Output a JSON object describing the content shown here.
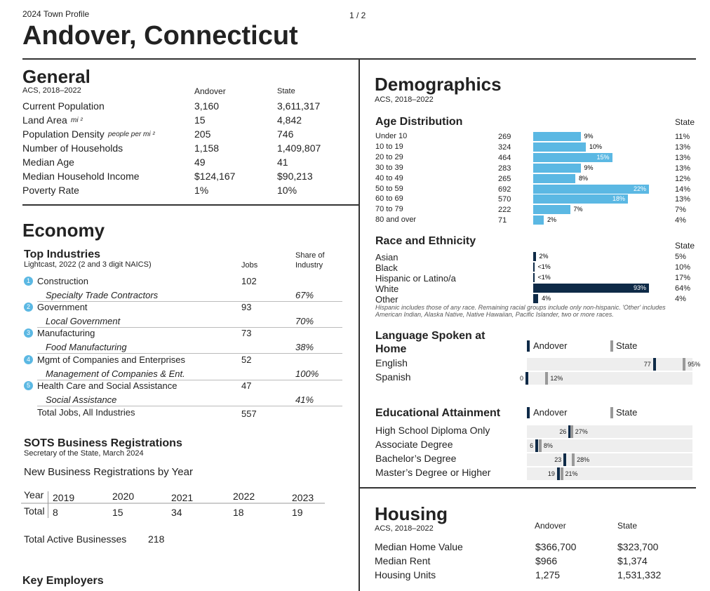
{
  "header": {
    "profile": "2024 Town Profile",
    "page": "1 / 2",
    "title": "Andover, Connecticut"
  },
  "general": {
    "title": "General",
    "source": "ACS, 2018–2022",
    "col_town": "Andover",
    "col_state": "State",
    "rows": [
      {
        "label": "Current Population",
        "town": "3,160",
        "state": "3,611,317"
      },
      {
        "label": "Land Area",
        "unit": "mi ²",
        "town": "15",
        "state": "4,842"
      },
      {
        "label": "Population Density",
        "unit": "people per mi ²",
        "town": "205",
        "state": "746"
      },
      {
        "label": "Number of Households",
        "town": "1,158",
        "state": "1,409,807"
      },
      {
        "label": "Median Age",
        "town": "49",
        "state": "41"
      },
      {
        "label": "Median Household Income",
        "town": "$124,167",
        "state": "$90,213"
      },
      {
        "label": "Poverty Rate",
        "town": "1%",
        "state": "10%"
      }
    ]
  },
  "economy": {
    "title": "Economy",
    "industries": {
      "title": "Top Industries",
      "source": "Lightcast, 2022 (2 and 3 digit NAICS)",
      "col_jobs": "Jobs",
      "col_share": "Share of Industry",
      "rows": [
        {
          "rank": "1",
          "name": "Construction",
          "jobs": "102",
          "sub": "Specialty Trade Contractors",
          "share": "67%"
        },
        {
          "rank": "2",
          "name": "Government",
          "jobs": "93",
          "sub": "Local Government",
          "share": "70%"
        },
        {
          "rank": "3",
          "name": "Manufacturing",
          "jobs": "73",
          "sub": "Food Manufacturing",
          "share": "38%"
        },
        {
          "rank": "4",
          "name": "Mgmt of Companies and Enterprises",
          "jobs": "52",
          "sub": "Management of Companies & Ent.",
          "share": "100%"
        },
        {
          "rank": "5",
          "name": "Health Care and Social Assistance",
          "jobs": "47",
          "sub": "Social Assistance",
          "share": "41%"
        }
      ],
      "total_label": "Total Jobs, All Industries",
      "total": "557"
    },
    "registrations": {
      "title": "SOTS Business Registrations",
      "source": "Secretary of the State, March 2024",
      "subtitle": "New Business Registrations by Year",
      "row_year": "Year",
      "row_total": "Total",
      "years": [
        "2019",
        "2020",
        "2021",
        "2022",
        "2023"
      ],
      "totals": [
        "8",
        "15",
        "34",
        "18",
        "19"
      ],
      "active_label": "Total Active Businesses",
      "active": "218"
    },
    "employers": {
      "title": "Key Employers"
    }
  },
  "demographics": {
    "title": "Demographics",
    "source": "ACS, 2018–2022",
    "age": {
      "title": "Age Distribution",
      "col_state": "State",
      "color": "#5bb8e3",
      "rows": [
        {
          "label": "Under 10",
          "count": 269,
          "pct": 9,
          "pct_label": "9%",
          "state": "11%"
        },
        {
          "label": "10 to 19",
          "count": 324,
          "pct": 10,
          "pct_label": "10%",
          "state": "13%"
        },
        {
          "label": "20 to 29",
          "count": 464,
          "pct": 15,
          "pct_label": "15%",
          "state": "13%"
        },
        {
          "label": "30 to 39",
          "count": 283,
          "pct": 9,
          "pct_label": "9%",
          "state": "13%"
        },
        {
          "label": "40 to 49",
          "count": 265,
          "pct": 8,
          "pct_label": "8%",
          "state": "12%"
        },
        {
          "label": "50 to 59",
          "count": 692,
          "pct": 22,
          "pct_label": "22%",
          "state": "14%"
        },
        {
          "label": "60 to 69",
          "count": 570,
          "pct": 18,
          "pct_label": "18%",
          "state": "13%"
        },
        {
          "label": "70 to 79",
          "count": 222,
          "pct": 7,
          "pct_label": "7%",
          "state": "7%"
        },
        {
          "label": "80 and over",
          "count": 71,
          "pct": 2,
          "pct_label": "2%",
          "state": "4%"
        }
      ]
    },
    "race": {
      "title": "Race and Ethnicity",
      "col_state": "State",
      "color": "#0e2a47",
      "rows": [
        {
          "label": "Asian",
          "pct": 2,
          "pct_label": "2%",
          "state": "5%"
        },
        {
          "label": "Black",
          "pct": 0.5,
          "pct_label": "<1%",
          "state": "10%"
        },
        {
          "label": "Hispanic or Latino/a",
          "pct": 0.5,
          "pct_label": "<1%",
          "state": "17%"
        },
        {
          "label": "White",
          "pct": 93,
          "pct_label": "93%",
          "state": "64%"
        },
        {
          "label": "Other",
          "pct": 4,
          "pct_label": "4%",
          "state": "4%"
        }
      ],
      "note": "Hispanic includes those of any race. Remaining racial groups include only non-hispanic. 'Other' includes American Indian, Alaska Native, Native Hawaiian, Pacific Islander, two or more races."
    },
    "language": {
      "title": "Language Spoken at Home",
      "legend_town": "Andover",
      "legend_state": "State",
      "rows": [
        {
          "label": "English",
          "town": 77,
          "state": 95,
          "state_label": "95%"
        },
        {
          "label": "Spanish",
          "town": 0,
          "state": 12,
          "state_label": "12%"
        }
      ]
    },
    "education": {
      "title": "Educational Attainment",
      "legend_town": "Andover",
      "legend_state": "State",
      "rows": [
        {
          "label": "High School Diploma Only",
          "town": 26,
          "state": 27,
          "state_label": "27%"
        },
        {
          "label": "Associate Degree",
          "town": 6,
          "state": 8,
          "state_label": "8%"
        },
        {
          "label": "Bachelor’s Degree",
          "town": 23,
          "state": 28,
          "state_label": "28%"
        },
        {
          "label": "Master’s Degree or Higher",
          "town": 19,
          "state": 21,
          "state_label": "21%"
        }
      ]
    }
  },
  "housing": {
    "title": "Housing",
    "source": "ACS, 2018–2022",
    "col_town": "Andover",
    "col_state": "State",
    "rows": [
      {
        "label": "Median Home Value",
        "town": "$366,700",
        "state": "$323,700"
      },
      {
        "label": "Median Rent",
        "town": "$966",
        "state": "$1,374"
      },
      {
        "label": "Housing Units",
        "town": "1,275",
        "state": "1,531,332"
      }
    ]
  }
}
